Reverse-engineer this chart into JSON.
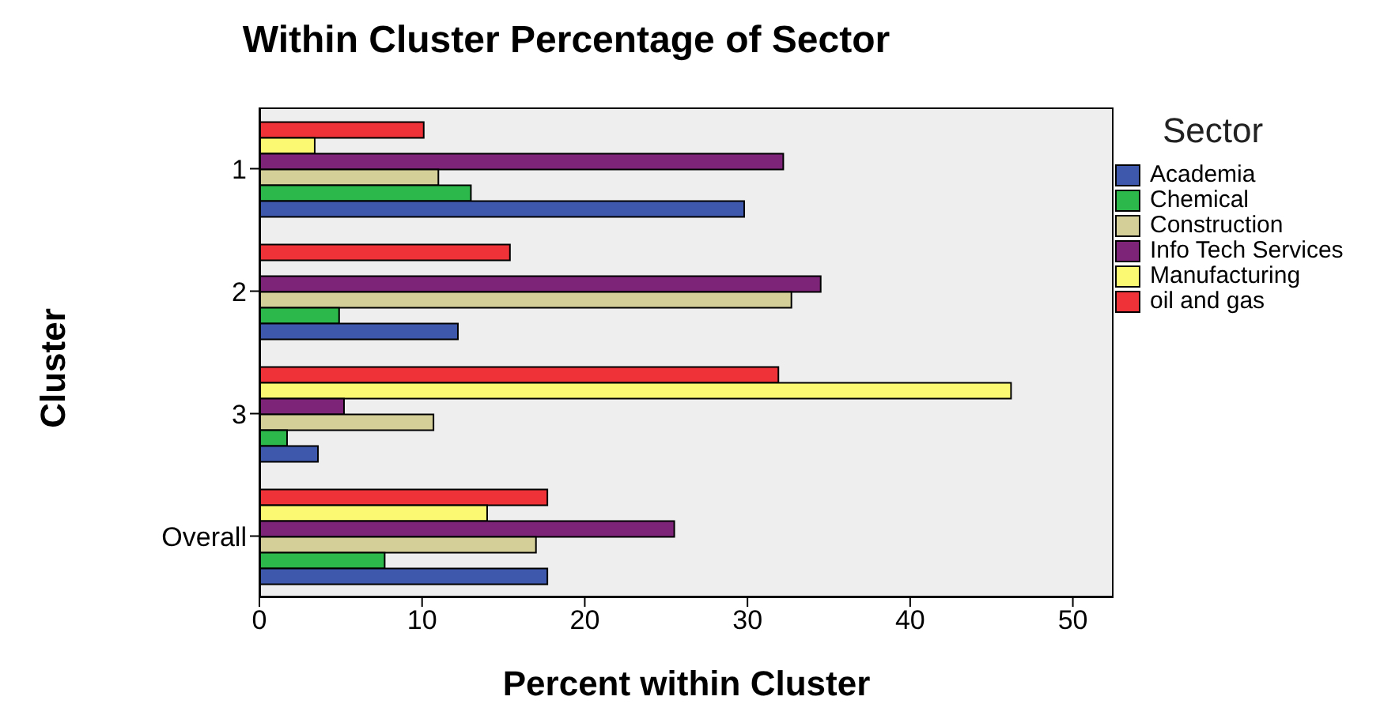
{
  "chart_data": {
    "type": "bar",
    "orientation": "horizontal",
    "title": "Within Cluster Percentage of Sector",
    "xlabel": "Percent within Cluster",
    "ylabel": "Cluster",
    "legend_title": "Sector",
    "categories": [
      "1",
      "2",
      "3",
      "Overall"
    ],
    "series": [
      {
        "name": "Academia",
        "color": "#3e58ac",
        "values": [
          29.8,
          12.2,
          3.6,
          17.7
        ]
      },
      {
        "name": "Chemical",
        "color": "#2db84b",
        "values": [
          13.0,
          4.9,
          1.7,
          7.7
        ]
      },
      {
        "name": "Construction",
        "color": "#d4cf98",
        "values": [
          11.0,
          32.7,
          10.7,
          17.0
        ]
      },
      {
        "name": "Info Tech Services",
        "color": "#7d2478",
        "values": [
          32.2,
          34.5,
          5.2,
          25.5
        ]
      },
      {
        "name": "Manufacturing",
        "color": "#fbf871",
        "values": [
          3.4,
          0,
          46.2,
          14.0
        ]
      },
      {
        "name": "oil and gas",
        "color": "#ef3237",
        "values": [
          10.1,
          15.4,
          31.9,
          17.7
        ]
      }
    ],
    "xlim": [
      0,
      52.5
    ],
    "xticks": [
      0,
      10,
      20,
      30,
      40,
      50
    ],
    "grid": false,
    "legend": "top right"
  }
}
